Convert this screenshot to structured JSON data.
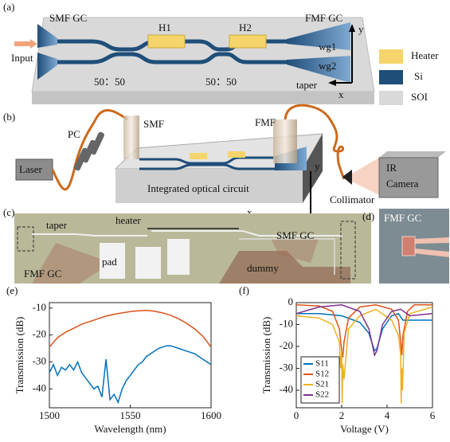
{
  "panels": {
    "a": {
      "label": "(a)",
      "smf_gc": "SMF GC",
      "h1": "H1",
      "h2": "H2",
      "fmf_gc": "FMF GC",
      "input": "Input",
      "wg1": "wg1",
      "wg2": "wg2",
      "y": "y",
      "x": "x",
      "taper": "taper",
      "coupler1": "50：50",
      "coupler2": "50：50",
      "legend": [
        "Heater",
        "Si",
        "SOI"
      ]
    },
    "b": {
      "label": "(b)",
      "pc": "PC",
      "smf": "SMF",
      "fmf": "FMF",
      "laser": "Laser",
      "circuit": "Integrated optical circuit",
      "y": "y",
      "x": "x",
      "collimator": "Collimator",
      "camera": [
        "IR",
        "Camera"
      ]
    },
    "c": {
      "label": "(c)",
      "taper": "taper",
      "heater": "heater",
      "smf_gc": "SMF GC",
      "pad": "pad",
      "dummy": "dummy",
      "fmf_gc": "FMF GC"
    },
    "d": {
      "label": "(d)",
      "fmf_gc": "FMF GC"
    }
  },
  "chart_data": [
    {
      "type": "line",
      "label": "(e)",
      "xlabel": "Wavelength (nm)",
      "ylabel": "Transmission (dB)",
      "xlim": [
        1500,
        1600
      ],
      "xticks": [
        1500,
        1550,
        1600
      ],
      "ylim": [
        -47,
        -8
      ],
      "yticks": [
        -40,
        -30,
        -20,
        -10
      ],
      "series": [
        {
          "color": "#d95319",
          "x": [
            1500,
            1505,
            1510,
            1515,
            1520,
            1525,
            1530,
            1535,
            1540,
            1545,
            1550,
            1555,
            1560,
            1565,
            1570,
            1575,
            1580,
            1585,
            1590,
            1595,
            1600
          ],
          "values": [
            -24.5,
            -21,
            -19,
            -17.5,
            -16,
            -15,
            -14,
            -13,
            -12.3,
            -11.8,
            -11.3,
            -11,
            -10.9,
            -11.2,
            -11.8,
            -12.7,
            -14,
            -15.7,
            -17.8,
            -20.5,
            -24.5
          ]
        },
        {
          "color": "#0072bd",
          "x": [
            1500,
            1502.5,
            1505,
            1507.5,
            1510,
            1512.5,
            1515,
            1517.5,
            1520,
            1522.5,
            1525,
            1527.5,
            1530,
            1532.5,
            1535,
            1537.5,
            1540,
            1542.5,
            1545,
            1547.5,
            1550,
            1552.5,
            1555,
            1557.5,
            1560,
            1562.5,
            1565,
            1567.5,
            1570,
            1572.5,
            1575,
            1577.5,
            1580,
            1582.5,
            1585,
            1587.5,
            1590,
            1592.5,
            1595,
            1597.5,
            1600
          ],
          "values": [
            -34,
            -31,
            -35,
            -32,
            -33,
            -31,
            -33,
            -30,
            -34,
            -36,
            -38,
            -40,
            -39,
            -43,
            -29,
            -44,
            -42,
            -45,
            -40,
            -37,
            -35,
            -33,
            -31,
            -30,
            -28,
            -27,
            -26,
            -25,
            -24.5,
            -24,
            -24,
            -24.5,
            -25,
            -25.5,
            -26,
            -26.5,
            -27,
            -28,
            -29,
            -30,
            -31
          ]
        }
      ]
    },
    {
      "type": "line",
      "label": "(f)",
      "xlabel": "Voltage (V)",
      "ylabel": "Transmission (dB)",
      "xlim": [
        0,
        6
      ],
      "xticks": [
        0,
        2,
        4,
        6
      ],
      "ylim": [
        -48,
        0
      ],
      "yticks": [
        -40,
        -30,
        -20,
        -10,
        0
      ],
      "legend": "lower left",
      "series": [
        {
          "name": "S11",
          "color": "#0072bd",
          "x": [
            0,
            1,
            2,
            2.8,
            3.2,
            3.45,
            3.55,
            3.8,
            4.2,
            4.5,
            4.7,
            4.85,
            5,
            6
          ],
          "values": [
            -5,
            -5,
            -6,
            -9,
            -14,
            -22,
            -21,
            -12,
            -6,
            -5,
            -8,
            -8,
            -8,
            -8
          ]
        },
        {
          "name": "S12",
          "color": "#d95319",
          "x": [
            0,
            1,
            1.6,
            1.9,
            2.0,
            2.05,
            2.1,
            2.3,
            2.8,
            3.5,
            4.2,
            4.5,
            4.6,
            4.65,
            4.7,
            4.9,
            5.2,
            6
          ],
          "values": [
            -1,
            -1.5,
            -4,
            -12,
            -22,
            -25,
            -18,
            -7,
            -2,
            -1,
            -3,
            -8,
            -18,
            -24,
            -15,
            -4,
            -1,
            -1
          ]
        },
        {
          "name": "S21",
          "color": "#edb120",
          "x": [
            0,
            1,
            1.6,
            1.9,
            1.95,
            2.0,
            2.02,
            2.05,
            2.1,
            2.3,
            2.8,
            3.5,
            4.2,
            4.5,
            4.6,
            4.62,
            4.65,
            4.68,
            4.75,
            5,
            6
          ],
          "values": [
            -6,
            -7,
            -10,
            -18,
            -30,
            -22,
            -46,
            -28,
            -35,
            -12,
            -6,
            -3,
            -8,
            -15,
            -24,
            -46,
            -30,
            -40,
            -14,
            -5,
            -2
          ]
        },
        {
          "name": "S22",
          "color": "#7e2f8e",
          "x": [
            0,
            1,
            2,
            2.8,
            3.2,
            3.45,
            3.55,
            3.8,
            4.2,
            4.6,
            5,
            6
          ],
          "values": [
            -5,
            -2,
            -1,
            -4,
            -12,
            -24,
            -22,
            -10,
            -4,
            -3,
            -6,
            -5
          ]
        }
      ]
    }
  ]
}
